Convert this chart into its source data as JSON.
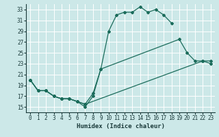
{
  "xlabel": "Humidex (Indice chaleur)",
  "xlim": [
    -0.5,
    23.5
  ],
  "ylim": [
    14.0,
    34.0
  ],
  "yticks": [
    15,
    17,
    19,
    21,
    23,
    25,
    27,
    29,
    31,
    33
  ],
  "xticks": [
    0,
    1,
    2,
    3,
    4,
    5,
    6,
    7,
    8,
    9,
    10,
    11,
    12,
    13,
    14,
    15,
    16,
    17,
    18,
    19,
    20,
    21,
    22,
    23
  ],
  "bg_color": "#cce8e8",
  "line_color": "#1a6b5a",
  "grid_color": "#ffffff",
  "line1_x": [
    0,
    1,
    2,
    3,
    4,
    5,
    6,
    7,
    8,
    9,
    10,
    11,
    12,
    13,
    14,
    15,
    16,
    17,
    18
  ],
  "line1_y": [
    20,
    18,
    18,
    17,
    16.5,
    16.5,
    16,
    15,
    17,
    22,
    29,
    32,
    32.5,
    32.5,
    33.5,
    32.5,
    33,
    32,
    30.5
  ],
  "line2_x": [
    0,
    1,
    2,
    3,
    4,
    5,
    6,
    7,
    8,
    9,
    19,
    20,
    21,
    22,
    23
  ],
  "line2_y": [
    20,
    18,
    18,
    17,
    16.5,
    16.5,
    16,
    15.5,
    17.5,
    22,
    27.5,
    25,
    23.5,
    23.5,
    23
  ],
  "line3_x": [
    0,
    1,
    2,
    3,
    4,
    5,
    6,
    7,
    22,
    23
  ],
  "line3_y": [
    20,
    18,
    18,
    17,
    16.5,
    16.5,
    16,
    15.5,
    23.5,
    23.5
  ]
}
